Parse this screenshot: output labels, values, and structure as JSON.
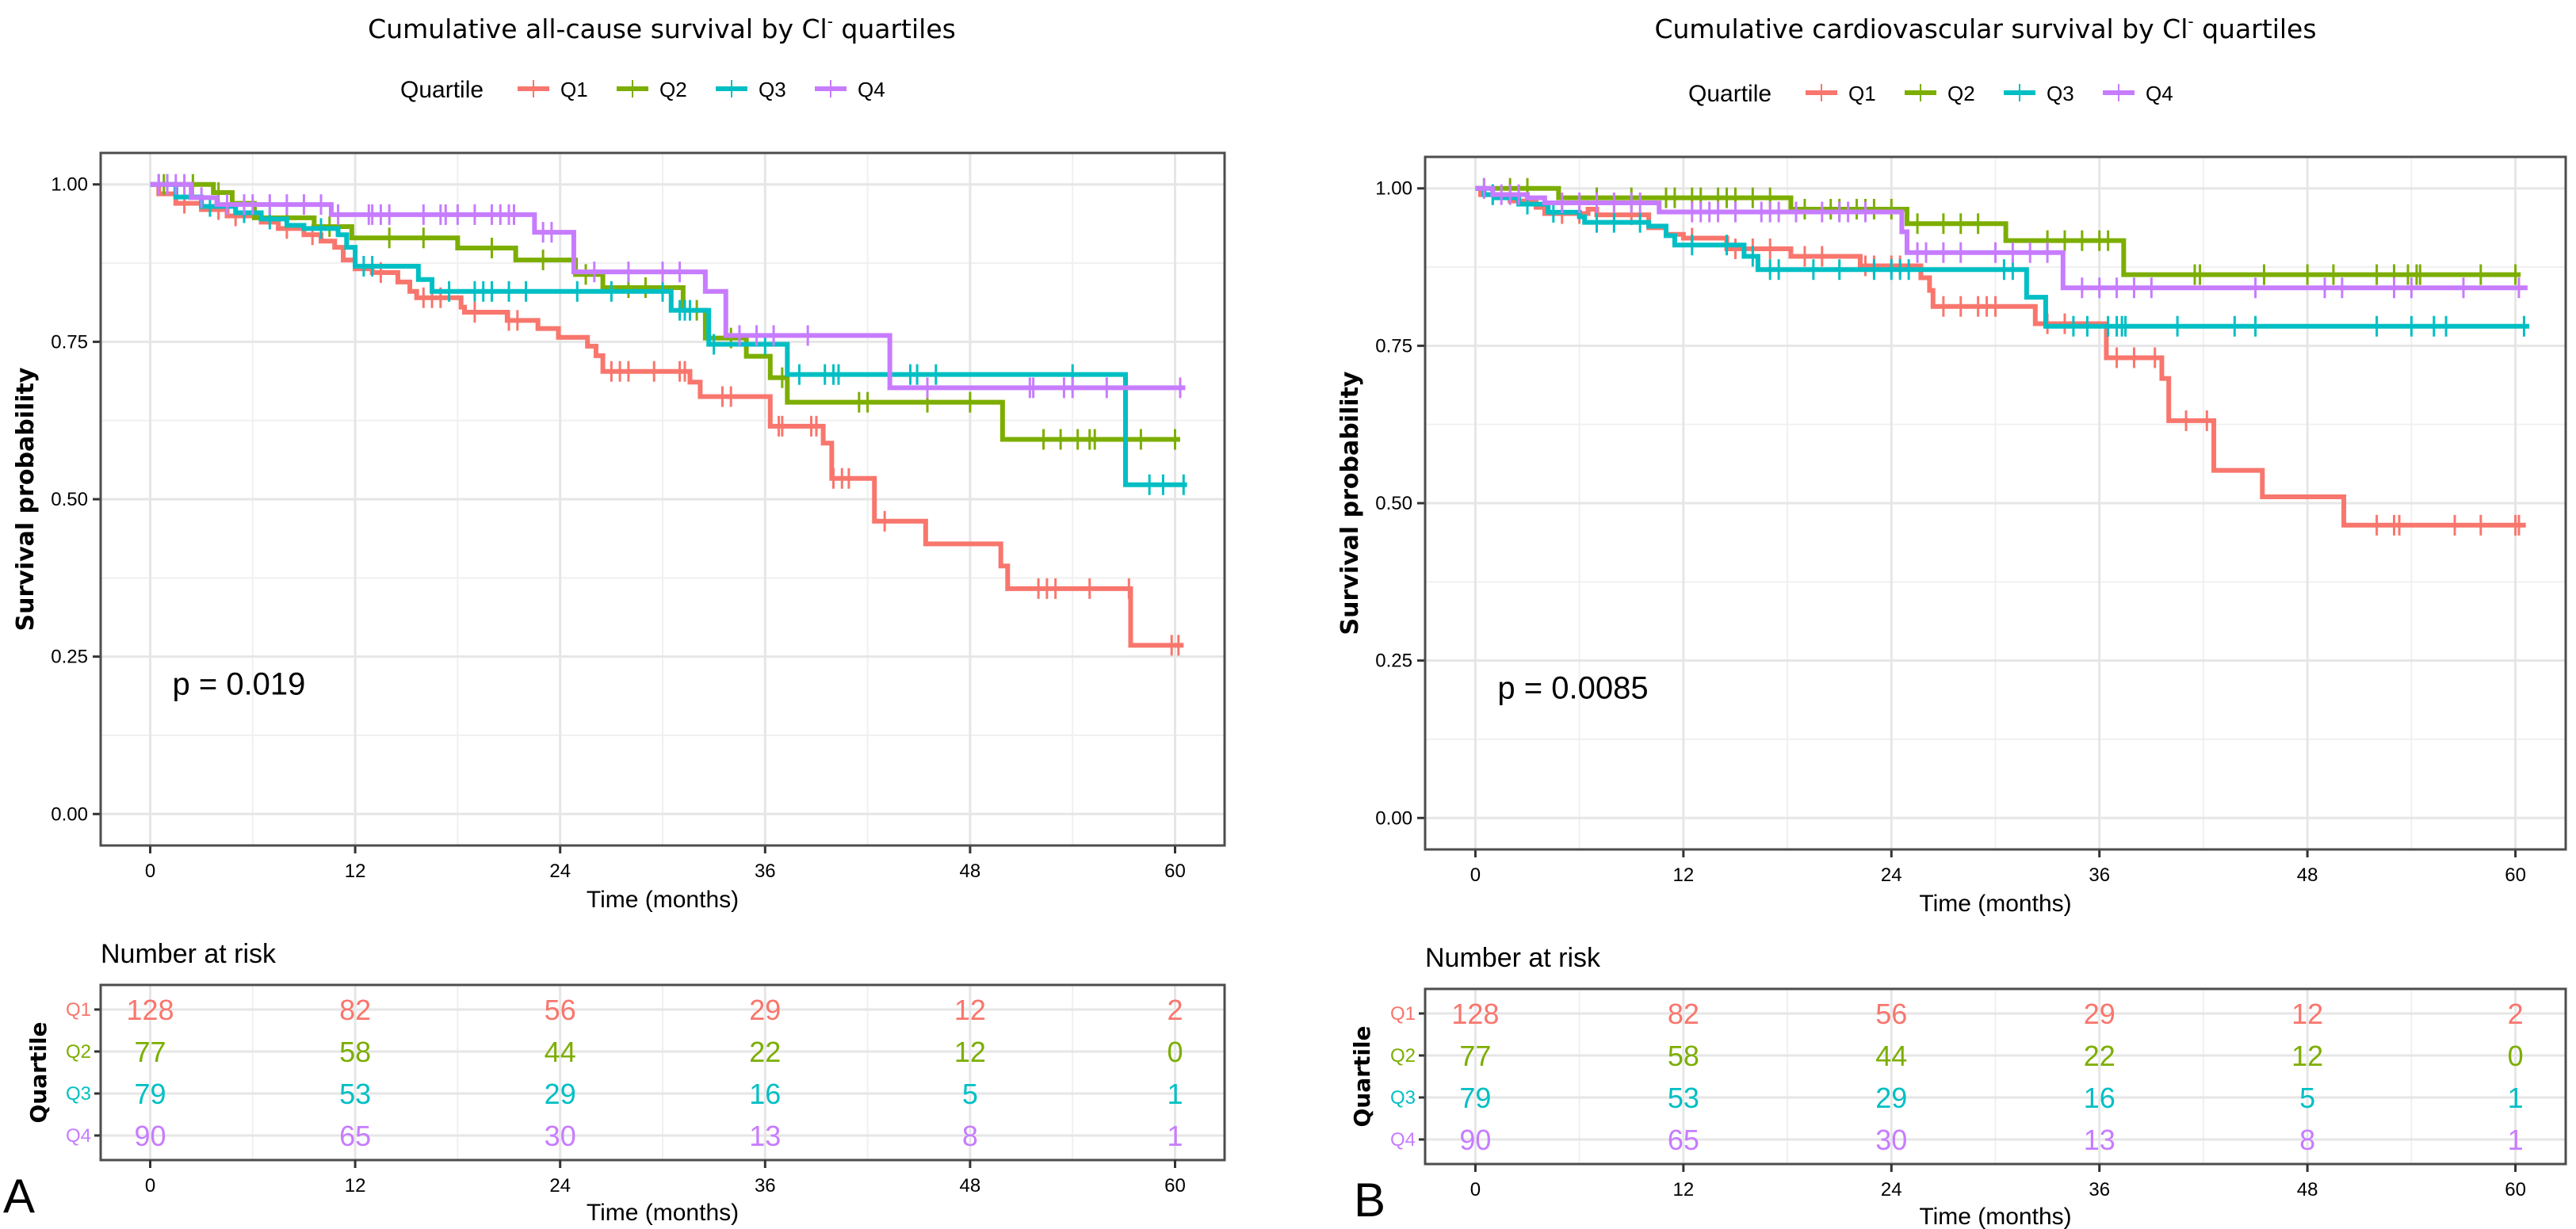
{
  "colors": {
    "Q1": "#f8766d",
    "Q2": "#7cae00",
    "Q3": "#00bfc4",
    "Q4": "#c77cff"
  },
  "chart_data": [
    {
      "type": "line",
      "subtype": "kaplan-meier step",
      "panel_letter": "A",
      "title_main": "Cumulative all-cause survival by Cl",
      "title_sup": "-",
      "title_rest": " quartiles",
      "legend": {
        "title": "Quartile",
        "entries": [
          "Q1",
          "Q2",
          "Q3",
          "Q4"
        ],
        "position": "top"
      },
      "xlabel": "Time (months)",
      "ylabel": "Survival probability",
      "xlim": [
        -2.9,
        62.9
      ],
      "ylim": [
        -0.05,
        1.05
      ],
      "xticks": [
        0,
        12,
        24,
        36,
        48,
        60
      ],
      "yticks": [
        0.0,
        0.25,
        0.5,
        0.75,
        1.0
      ],
      "ytick_labels": [
        "0.00",
        "0.25",
        "0.50",
        "0.75",
        "1.00"
      ],
      "grid": true,
      "annotation": "p = 0.019",
      "series": [
        {
          "name": "Q1",
          "steps": [
            [
              0,
              1.0
            ],
            [
              0.5,
              0.985
            ],
            [
              1.5,
              0.97
            ],
            [
              3,
              0.96
            ],
            [
              4.5,
              0.95
            ],
            [
              6.5,
              0.94
            ],
            [
              7.5,
              0.93
            ],
            [
              9,
              0.92
            ],
            [
              10,
              0.91
            ],
            [
              10.8,
              0.9
            ],
            [
              11.3,
              0.88
            ],
            [
              12,
              0.866
            ],
            [
              13,
              0.86
            ],
            [
              14.5,
              0.845
            ],
            [
              15.2,
              0.83
            ],
            [
              15.6,
              0.82
            ],
            [
              18.2,
              0.805
            ],
            [
              18.4,
              0.797
            ],
            [
              20.9,
              0.784
            ],
            [
              22.7,
              0.771
            ],
            [
              23.9,
              0.757
            ],
            [
              25.6,
              0.743
            ],
            [
              26.1,
              0.728
            ],
            [
              26.5,
              0.703
            ],
            [
              31.6,
              0.686
            ],
            [
              32.2,
              0.663
            ],
            [
              36.3,
              0.616
            ],
            [
              39.4,
              0.589
            ],
            [
              39.9,
              0.533
            ],
            [
              42.4,
              0.465
            ],
            [
              45.4,
              0.429
            ],
            [
              49.8,
              0.394
            ],
            [
              50.2,
              0.358
            ],
            [
              57.4,
              0.268
            ]
          ],
          "end": 60.5,
          "censor_times": [
            2,
            4,
            5,
            8,
            9.5,
            13.5,
            16,
            16.5,
            17,
            19,
            21,
            21.5,
            27,
            27.5,
            28,
            29.5,
            31,
            31.3,
            33.5,
            34,
            36.8,
            37,
            38.7,
            39,
            40,
            40.5,
            40.9,
            43,
            52,
            52.5,
            53,
            55,
            57.3,
            59.8,
            60.2
          ]
        },
        {
          "name": "Q2",
          "steps": [
            [
              0,
              1.0
            ],
            [
              3.7,
              0.987
            ],
            [
              4.8,
              0.97
            ],
            [
              6.1,
              0.947
            ],
            [
              9.6,
              0.933
            ],
            [
              11.8,
              0.915
            ],
            [
              18,
              0.899
            ],
            [
              21.4,
              0.88
            ],
            [
              24.9,
              0.857
            ],
            [
              26.5,
              0.836
            ],
            [
              31.2,
              0.8
            ],
            [
              32.5,
              0.756
            ],
            [
              34.9,
              0.727
            ],
            [
              36.3,
              0.693
            ],
            [
              37.3,
              0.654
            ],
            [
              49.9,
              0.595
            ]
          ],
          "end": 60.3,
          "censor_times": [
            0.8,
            2.5,
            4,
            8,
            10.5,
            14,
            16,
            20,
            23,
            25.5,
            28,
            29,
            32,
            34,
            37,
            41.5,
            42,
            45.5,
            48,
            52.3,
            53.3,
            54.3,
            55,
            55.3,
            58,
            60
          ]
        },
        {
          "name": "Q3",
          "steps": [
            [
              0,
              1.0
            ],
            [
              1.5,
              0.98
            ],
            [
              3,
              0.965
            ],
            [
              5,
              0.955
            ],
            [
              6.5,
              0.945
            ],
            [
              8,
              0.935
            ],
            [
              9,
              0.93
            ],
            [
              11,
              0.92
            ],
            [
              11.5,
              0.9
            ],
            [
              12,
              0.87
            ],
            [
              15.7,
              0.849
            ],
            [
              16.5,
              0.83
            ],
            [
              30.5,
              0.8
            ],
            [
              32.7,
              0.746
            ],
            [
              37.3,
              0.698
            ],
            [
              57.1,
              0.523
            ]
          ],
          "end": 60.7,
          "censor_times": [
            0.5,
            1,
            3.5,
            5.5,
            7,
            10,
            12.5,
            13,
            17.5,
            19,
            19.5,
            20,
            21,
            22,
            25,
            27,
            30,
            31,
            31.3,
            31.6,
            33,
            36,
            38,
            39.5,
            40,
            40.3,
            44.5,
            44.9,
            46,
            54,
            58.5,
            59.3,
            60.5
          ]
        },
        {
          "name": "Q4",
          "steps": [
            [
              0,
              1.0
            ],
            [
              2.4,
              0.979
            ],
            [
              3.9,
              0.968
            ],
            [
              10.6,
              0.952
            ],
            [
              22.5,
              0.924
            ],
            [
              24.8,
              0.861
            ],
            [
              32.5,
              0.83
            ],
            [
              33.7,
              0.76
            ],
            [
              43.3,
              0.677
            ]
          ],
          "end": 60.6,
          "censor_times": [
            0.5,
            1,
            1.5,
            2,
            3,
            4.5,
            5.5,
            6,
            7,
            8,
            9,
            10,
            11,
            12.8,
            13,
            13.5,
            14,
            16,
            17,
            17.3,
            18,
            19,
            20,
            20.5,
            21,
            21.3,
            23,
            23.5,
            26,
            28,
            30,
            31,
            34.5,
            35.5,
            36.5,
            38.5,
            45.5,
            51.5,
            51.7,
            53.5,
            54,
            56,
            60.3
          ]
        }
      ],
      "risk_table": {
        "title": "Number at risk",
        "ylabel": "Quartile",
        "xlabel": "Time (months)",
        "times": [
          0,
          12,
          24,
          36,
          48,
          60
        ],
        "rows": [
          {
            "name": "Q1",
            "values": [
              128,
              82,
              56,
              29,
              12,
              2
            ]
          },
          {
            "name": "Q2",
            "values": [
              77,
              58,
              44,
              22,
              12,
              0
            ]
          },
          {
            "name": "Q3",
            "values": [
              79,
              53,
              29,
              16,
              5,
              1
            ]
          },
          {
            "name": "Q4",
            "values": [
              90,
              65,
              30,
              13,
              8,
              1
            ]
          }
        ]
      }
    },
    {
      "type": "line",
      "subtype": "kaplan-meier step",
      "panel_letter": "B",
      "title_main": "Cumulative cardiovascular survival by Cl",
      "title_sup": "-",
      "title_rest": " quartiles",
      "legend": {
        "title": "Quartile",
        "entries": [
          "Q1",
          "Q2",
          "Q3",
          "Q4"
        ],
        "position": "top"
      },
      "xlabel": "Time (months)",
      "ylabel": "Survival probability",
      "xlim": [
        -2.9,
        62.9
      ],
      "ylim": [
        -0.05,
        1.05
      ],
      "xticks": [
        0,
        12,
        24,
        36,
        48,
        60
      ],
      "yticks": [
        0.0,
        0.25,
        0.5,
        0.75,
        1.0
      ],
      "ytick_labels": [
        "0.00",
        "0.25",
        "0.50",
        "0.75",
        "1.00"
      ],
      "grid": true,
      "annotation": "p = 0.0085",
      "series": [
        {
          "name": "Q1",
          "steps": [
            [
              0,
              1.0
            ],
            [
              0.3,
              0.99
            ],
            [
              2,
              0.98
            ],
            [
              3.5,
              0.97
            ],
            [
              4,
              0.96
            ],
            [
              6.5,
              0.967
            ],
            [
              7,
              0.958
            ],
            [
              10,
              0.9375
            ],
            [
              11,
              0.927
            ],
            [
              12,
              0.921
            ],
            [
              14.5,
              0.904
            ],
            [
              18.2,
              0.892
            ],
            [
              22.2,
              0.877
            ],
            [
              25.7,
              0.858
            ],
            [
              26.2,
              0.838
            ],
            [
              26.4,
              0.8125
            ],
            [
              32.3,
              0.785
            ],
            [
              36.4,
              0.731
            ],
            [
              39.6,
              0.698
            ],
            [
              40,
              0.631
            ],
            [
              42.6,
              0.552
            ],
            [
              45.4,
              0.51
            ],
            [
              50.1,
              0.465
            ]
          ],
          "end": 60.6,
          "censor_times": [
            1,
            3,
            5,
            6,
            8,
            9,
            12.5,
            15,
            16,
            17,
            19,
            20,
            22.5,
            23,
            24,
            24.5,
            27,
            28,
            29,
            29.5,
            30,
            33,
            34,
            37,
            38,
            39.2,
            41,
            42.2,
            52,
            53,
            53.3,
            56.5,
            58,
            60,
            60.2
          ]
        },
        {
          "name": "Q2",
          "steps": [
            [
              0,
              1.0
            ],
            [
              4.8,
              0.985
            ],
            [
              18.2,
              0.967
            ],
            [
              24.9,
              0.944
            ],
            [
              30.6,
              0.917
            ],
            [
              37.4,
              0.863
            ]
          ],
          "end": 60.3,
          "censor_times": [
            0.5,
            2,
            3,
            7,
            9,
            11,
            11.5,
            12.5,
            13,
            14,
            14.5,
            15,
            16,
            17,
            19,
            20.5,
            21,
            22,
            22.5,
            23,
            24,
            25.5,
            27,
            28,
            29,
            33,
            34,
            35,
            36,
            36.5,
            41.5,
            41.8,
            45.5,
            48,
            49.5,
            52,
            53,
            53.8,
            54.3,
            54.5,
            58,
            60
          ]
        },
        {
          "name": "Q3",
          "steps": [
            [
              0,
              1.0
            ],
            [
              0.5,
              0.99
            ],
            [
              1.2,
              0.985
            ],
            [
              2.5,
              0.975
            ],
            [
              4.2,
              0.962
            ],
            [
              6,
              0.955
            ],
            [
              6.3,
              0.946
            ],
            [
              10,
              0.94
            ],
            [
              11,
              0.925
            ],
            [
              11.5,
              0.91
            ],
            [
              15.5,
              0.892
            ],
            [
              16.3,
              0.871
            ],
            [
              31.8,
              0.827
            ],
            [
              32.9,
              0.781
            ]
          ],
          "end": 60.8,
          "censor_times": [
            1,
            3,
            4.5,
            7,
            8,
            9.5,
            12.5,
            14.5,
            16,
            17,
            17.5,
            19.5,
            21,
            23,
            24,
            24.5,
            25,
            30.5,
            31,
            34.5,
            35.3,
            36.5,
            37,
            37.3,
            37.5,
            40.5,
            43.8,
            45,
            52,
            54,
            55.3,
            56,
            60.5
          ]
        },
        {
          "name": "Q4",
          "steps": [
            [
              0,
              1.0
            ],
            [
              1,
              0.99
            ],
            [
              3,
              0.985
            ],
            [
              4,
              0.977
            ],
            [
              10.6,
              0.9625
            ],
            [
              24.6,
              0.931
            ],
            [
              24.9,
              0.898
            ],
            [
              33.9,
              0.842
            ]
          ],
          "end": 60.7,
          "censor_times": [
            0.5,
            1.5,
            2,
            2.5,
            5,
            6,
            7,
            8,
            9,
            9.5,
            12.5,
            13,
            13.5,
            14,
            15,
            16.5,
            17,
            17.5,
            18.5,
            20,
            21,
            21.5,
            22.5,
            25.5,
            26,
            27,
            28,
            30,
            31,
            32,
            33,
            35,
            36,
            37,
            38,
            39,
            45,
            49,
            50,
            53,
            54,
            57,
            60.2
          ]
        }
      ],
      "risk_table": {
        "title": "Number at risk",
        "ylabel": "Quartile",
        "xlabel": "Time (months)",
        "times": [
          0,
          12,
          24,
          36,
          48,
          60
        ],
        "rows": [
          {
            "name": "Q1",
            "values": [
              128,
              82,
              56,
              29,
              12,
              2
            ]
          },
          {
            "name": "Q2",
            "values": [
              77,
              58,
              44,
              22,
              12,
              0
            ]
          },
          {
            "name": "Q3",
            "values": [
              79,
              53,
              29,
              16,
              5,
              1
            ]
          },
          {
            "name": "Q4",
            "values": [
              90,
              65,
              30,
              13,
              8,
              1
            ]
          }
        ]
      }
    }
  ]
}
